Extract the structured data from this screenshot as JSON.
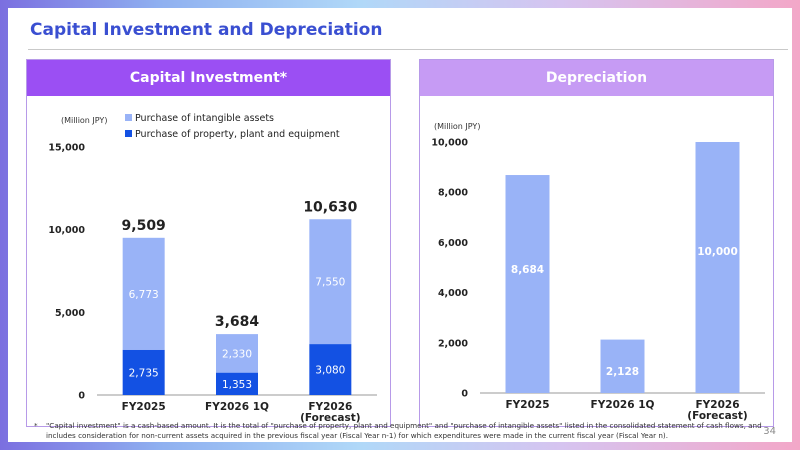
{
  "slide": {
    "title": "Capital Investment and Depreciation",
    "footnote_mark": "*",
    "footnote": "\"Capital investment\" is a cash-based amount. It is the total of \"purchase of property, plant and equipment\" and \"purchase of intangible assets\" listed in the consolidated statement of cash flows, and includes consideration for non-current assets acquired in the previous fiscal year (Fiscal Year n-1) for which expenditures were made in the current fiscal year (Fiscal Year n).",
    "page_number": "34"
  },
  "colors": {
    "intangible": "#99b3f7",
    "ppe": "#1351e3",
    "depreciation": "#99b3f7",
    "left_header": "#9b4ff3",
    "right_header": "#c69bf4",
    "title": "#3a4fd1"
  },
  "chart_data": [
    {
      "type": "bar",
      "stacked": true,
      "title": "Capital Investment*",
      "unit": "(Million JPY)",
      "categories": [
        "FY2025",
        "FY2026 1Q",
        "FY2026\n(Forecast)"
      ],
      "series": [
        {
          "name": "Purchase of property, plant and equipment",
          "values": [
            2735,
            1353,
            3080
          ]
        },
        {
          "name": "Purchase of intangible assets",
          "values": [
            6773,
            2330,
            7550
          ]
        }
      ],
      "value_labels": {
        "Purchase of property, plant and equipment": [
          "2,735",
          "1,353",
          "3,080"
        ],
        "Purchase of intangible assets": [
          "6,773",
          "2,330",
          "7,550"
        ]
      },
      "totals": [
        "9,509",
        "3,684",
        "10,630"
      ],
      "ylim": [
        0,
        15000
      ],
      "yticks": [
        0,
        5000,
        10000,
        15000
      ],
      "ytick_labels": [
        "0",
        "5,000",
        "10,000",
        "15,000"
      ],
      "legend": [
        "Purchase of intangible assets",
        "Purchase of property, plant and equipment"
      ],
      "legend_position": "top-left",
      "grid": false
    },
    {
      "type": "bar",
      "title": "Depreciation",
      "unit": "(Million JPY)",
      "categories": [
        "FY2025",
        "FY2026 1Q",
        "FY2026\n(Forecast)"
      ],
      "values": [
        8684,
        2128,
        10000
      ],
      "value_labels": [
        "8,684",
        "2,128",
        "10,000"
      ],
      "ylim": [
        0,
        10000
      ],
      "yticks": [
        0,
        2000,
        4000,
        6000,
        8000,
        10000
      ],
      "ytick_labels": [
        "0",
        "2,000",
        "4,000",
        "6,000",
        "8,000",
        "10,000"
      ],
      "grid": false
    }
  ]
}
